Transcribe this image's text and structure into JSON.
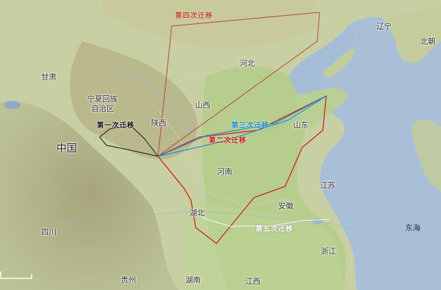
{
  "labels": {
    "liaoning": "辽宁",
    "north_korea": "北朝",
    "gansu": "甘肃",
    "hebei": "河北",
    "ningxia": "宁夏回族自治区",
    "ningxia_l1": "宁夏回族",
    "ningxia_l2": "自治区",
    "shanxi": "山西",
    "shaanxi": "陕西",
    "shandong": "山东",
    "china": "中国",
    "henan": "河南",
    "jiangsu": "江苏",
    "hubei": "湖北",
    "anhui": "安徽",
    "sichuan": "四川",
    "east_sea": "东海",
    "zhejiang": "浙江",
    "guizhou": "贵州",
    "hunan": "湖南",
    "jiangxi": "江西"
  },
  "routes": [
    {
      "id": "route-1",
      "label": "第一次迁移",
      "color": "#111111"
    },
    {
      "id": "route-2",
      "label": "第二次迁移",
      "color": "#d11a1a"
    },
    {
      "id": "route-3",
      "label": "第三次迁移",
      "color": "#1c8ec9"
    },
    {
      "id": "route-4",
      "label": "第四次迁移",
      "color": "#b5423a"
    },
    {
      "id": "route-5",
      "label": "第五次迁移",
      "color": "#ffffff"
    }
  ],
  "colors": {
    "sea": "#a9bfd8",
    "land": "#c9d3a8",
    "plain": "#b7cf8e",
    "mountain": "#a7a778"
  }
}
